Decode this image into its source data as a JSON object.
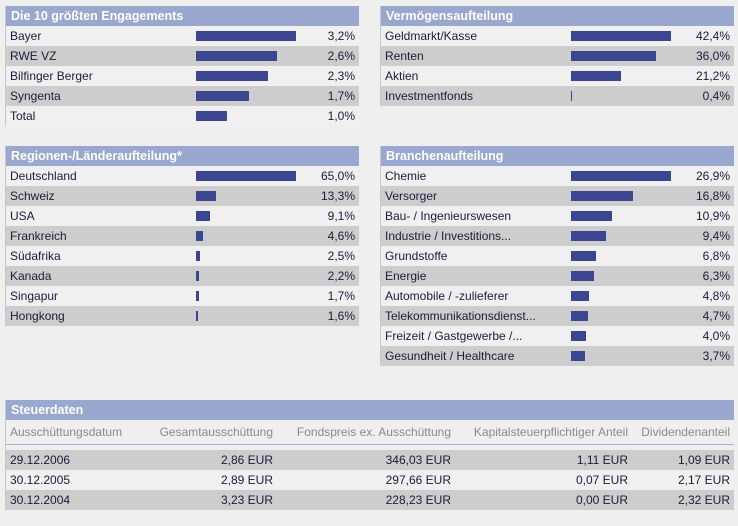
{
  "colors": {
    "header_bg": "#9aa7cf",
    "bar": "#3b4690",
    "row_light": "#f0f0f0",
    "row_dark": "#cdcdcd"
  },
  "engagements": {
    "title": "Die 10 größten Engagements",
    "max": 3.2,
    "rows": [
      {
        "label": "Bayer",
        "value": 3.2,
        "display": "3,2%"
      },
      {
        "label": "RWE VZ",
        "value": 2.6,
        "display": "2,6%"
      },
      {
        "label": "Bilfinger Berger",
        "value": 2.3,
        "display": "2,3%"
      },
      {
        "label": "Syngenta",
        "value": 1.7,
        "display": "1,7%"
      },
      {
        "label": "Total",
        "value": 1.0,
        "display": "1,0%"
      }
    ]
  },
  "vermoegen": {
    "title": "Vermögensaufteilung",
    "max": 42.4,
    "rows": [
      {
        "label": "Geldmarkt/Kasse",
        "value": 42.4,
        "display": "42,4%"
      },
      {
        "label": "Renten",
        "value": 36.0,
        "display": "36,0%"
      },
      {
        "label": "Aktien",
        "value": 21.2,
        "display": "21,2%"
      },
      {
        "label": "Investmentfonds",
        "value": 0.4,
        "display": "0,4%"
      }
    ]
  },
  "regionen": {
    "title": "Regionen-/Länderaufteilung*",
    "max": 65.0,
    "rows": [
      {
        "label": "Deutschland",
        "value": 65.0,
        "display": "65,0%"
      },
      {
        "label": "Schweiz",
        "value": 13.3,
        "display": "13,3%"
      },
      {
        "label": "USA",
        "value": 9.1,
        "display": "9,1%"
      },
      {
        "label": "Frankreich",
        "value": 4.6,
        "display": "4,6%"
      },
      {
        "label": "Südafrika",
        "value": 2.5,
        "display": "2,5%"
      },
      {
        "label": "Kanada",
        "value": 2.2,
        "display": "2,2%"
      },
      {
        "label": "Singapur",
        "value": 1.7,
        "display": "1,7%"
      },
      {
        "label": "Hongkong",
        "value": 1.6,
        "display": "1,6%"
      }
    ]
  },
  "branchen": {
    "title": "Branchenaufteilung",
    "max": 26.9,
    "rows": [
      {
        "label": "Chemie",
        "value": 26.9,
        "display": "26,9%"
      },
      {
        "label": "Versorger",
        "value": 16.8,
        "display": "16,8%"
      },
      {
        "label": "Bau- / Ingenieurswesen",
        "value": 10.9,
        "display": "10,9%"
      },
      {
        "label": "Industrie / Investitions...",
        "value": 9.4,
        "display": "9,4%"
      },
      {
        "label": "Grundstoffe",
        "value": 6.8,
        "display": "6,8%"
      },
      {
        "label": "Energie",
        "value": 6.3,
        "display": "6,3%"
      },
      {
        "label": "Automobile / -zulieferer",
        "value": 4.8,
        "display": "4,8%"
      },
      {
        "label": "Telekommunikationsdienst...",
        "value": 4.7,
        "display": "4,7%"
      },
      {
        "label": "Freizeit / Gastgewerbe /...",
        "value": 4.0,
        "display": "4,0%"
      },
      {
        "label": "Gesundheit / Healthcare",
        "value": 3.7,
        "display": "3,7%"
      }
    ]
  },
  "steuer": {
    "title": "Steuerdaten",
    "columns": [
      "Ausschüttungsdatum",
      "Gesamtausschüttung",
      "Fondspreis ex. Ausschüttung",
      "Kapitalsteuerpflichtiger Anteil",
      "Dividendenanteil"
    ],
    "rows": [
      [
        "29.12.2006",
        "2,86 EUR",
        "346,03 EUR",
        "1,11 EUR",
        "1,09 EUR"
      ],
      [
        "30.12.2005",
        "2,89 EUR",
        "297,66 EUR",
        "0,07 EUR",
        "2,17 EUR"
      ],
      [
        "30.12.2004",
        "3,23 EUR",
        "228,23 EUR",
        "0,00 EUR",
        "2,32 EUR"
      ]
    ]
  }
}
